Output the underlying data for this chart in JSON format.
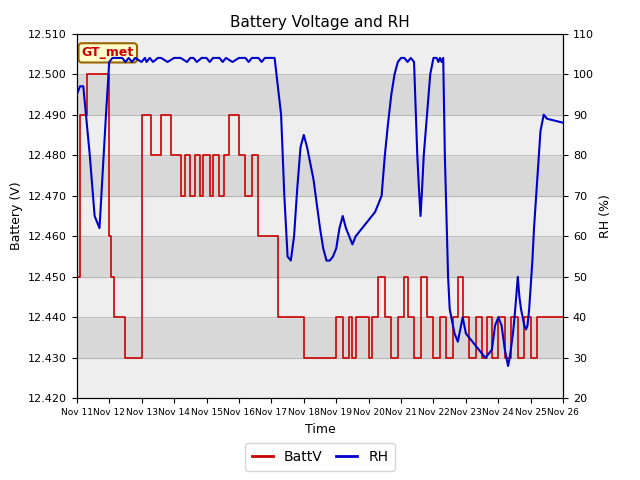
{
  "title": "Battery Voltage and RH",
  "xlabel": "Time",
  "ylabel_left": "Battery (V)",
  "ylabel_right": "RH (%)",
  "ylim_left": [
    12.42,
    12.51
  ],
  "ylim_right": [
    20,
    110
  ],
  "yticks_left": [
    12.42,
    12.43,
    12.44,
    12.45,
    12.46,
    12.47,
    12.48,
    12.49,
    12.5,
    12.51
  ],
  "yticks_right": [
    20,
    30,
    40,
    50,
    60,
    70,
    80,
    90,
    100,
    110
  ],
  "legend_label_batt": "BattV",
  "legend_label_rh": "RH",
  "batt_color": "#cc0000",
  "rh_color": "#0000cc",
  "annotation_text": "GT_met",
  "annotation_bg": "#ffffcc",
  "annotation_border": "#996600",
  "band_color_dark": "#d8d8d8",
  "band_color_light": "#eeeeee",
  "xtick_labels": [
    "Nov 11",
    "Nov 12",
    "Nov 13",
    "Nov 14",
    "Nov 15",
    "Nov 16",
    "Nov 17",
    "Nov 18",
    "Nov 19",
    "Nov 20",
    "Nov 21",
    "Nov 22",
    "Nov 23",
    "Nov 24",
    "Nov 25",
    "Nov 26"
  ],
  "batt_data": [
    [
      0.0,
      12.45
    ],
    [
      0.1,
      12.45
    ],
    [
      0.1,
      12.49
    ],
    [
      0.3,
      12.49
    ],
    [
      0.3,
      12.5
    ],
    [
      1.0,
      12.5
    ],
    [
      1.0,
      12.46
    ],
    [
      1.05,
      12.46
    ],
    [
      1.05,
      12.45
    ],
    [
      1.15,
      12.45
    ],
    [
      1.15,
      12.44
    ],
    [
      1.5,
      12.44
    ],
    [
      1.5,
      12.43
    ],
    [
      2.0,
      12.43
    ],
    [
      2.0,
      12.49
    ],
    [
      2.3,
      12.49
    ],
    [
      2.3,
      12.48
    ],
    [
      2.6,
      12.48
    ],
    [
      2.6,
      12.49
    ],
    [
      2.9,
      12.49
    ],
    [
      2.9,
      12.48
    ],
    [
      3.2,
      12.48
    ],
    [
      3.2,
      12.47
    ],
    [
      3.35,
      12.47
    ],
    [
      3.35,
      12.48
    ],
    [
      3.5,
      12.48
    ],
    [
      3.5,
      12.47
    ],
    [
      3.65,
      12.47
    ],
    [
      3.65,
      12.48
    ],
    [
      3.8,
      12.48
    ],
    [
      3.8,
      12.47
    ],
    [
      3.9,
      12.47
    ],
    [
      3.9,
      12.48
    ],
    [
      4.1,
      12.48
    ],
    [
      4.1,
      12.47
    ],
    [
      4.2,
      12.47
    ],
    [
      4.2,
      12.48
    ],
    [
      4.4,
      12.48
    ],
    [
      4.4,
      12.47
    ],
    [
      4.55,
      12.47
    ],
    [
      4.55,
      12.48
    ],
    [
      4.7,
      12.48
    ],
    [
      4.7,
      12.49
    ],
    [
      5.0,
      12.49
    ],
    [
      5.0,
      12.48
    ],
    [
      5.2,
      12.48
    ],
    [
      5.2,
      12.47
    ],
    [
      5.4,
      12.47
    ],
    [
      5.4,
      12.48
    ],
    [
      5.6,
      12.48
    ],
    [
      5.6,
      12.46
    ],
    [
      6.2,
      12.46
    ],
    [
      6.2,
      12.44
    ],
    [
      7.0,
      12.44
    ],
    [
      7.0,
      12.43
    ],
    [
      8.0,
      12.43
    ],
    [
      8.0,
      12.44
    ],
    [
      8.2,
      12.44
    ],
    [
      8.2,
      12.43
    ],
    [
      8.4,
      12.43
    ],
    [
      8.4,
      12.44
    ],
    [
      8.5,
      12.44
    ],
    [
      8.5,
      12.43
    ],
    [
      8.6,
      12.43
    ],
    [
      8.6,
      12.44
    ],
    [
      9.0,
      12.44
    ],
    [
      9.0,
      12.43
    ],
    [
      9.1,
      12.43
    ],
    [
      9.1,
      12.44
    ],
    [
      9.3,
      12.44
    ],
    [
      9.3,
      12.45
    ],
    [
      9.5,
      12.45
    ],
    [
      9.5,
      12.44
    ],
    [
      9.7,
      12.44
    ],
    [
      9.7,
      12.43
    ],
    [
      9.9,
      12.43
    ],
    [
      9.9,
      12.44
    ],
    [
      10.1,
      12.44
    ],
    [
      10.1,
      12.45
    ],
    [
      10.2,
      12.45
    ],
    [
      10.2,
      12.44
    ],
    [
      10.4,
      12.44
    ],
    [
      10.4,
      12.43
    ],
    [
      10.6,
      12.43
    ],
    [
      10.6,
      12.45
    ],
    [
      10.8,
      12.45
    ],
    [
      10.8,
      12.44
    ],
    [
      11.0,
      12.44
    ],
    [
      11.0,
      12.43
    ],
    [
      11.2,
      12.43
    ],
    [
      11.2,
      12.44
    ],
    [
      11.4,
      12.44
    ],
    [
      11.4,
      12.43
    ],
    [
      11.6,
      12.43
    ],
    [
      11.6,
      12.44
    ],
    [
      11.75,
      12.44
    ],
    [
      11.75,
      12.45
    ],
    [
      11.9,
      12.45
    ],
    [
      11.9,
      12.44
    ],
    [
      12.1,
      12.44
    ],
    [
      12.1,
      12.43
    ],
    [
      12.3,
      12.43
    ],
    [
      12.3,
      12.44
    ],
    [
      12.5,
      12.44
    ],
    [
      12.5,
      12.43
    ],
    [
      12.65,
      12.43
    ],
    [
      12.65,
      12.44
    ],
    [
      12.8,
      12.44
    ],
    [
      12.8,
      12.43
    ],
    [
      13.0,
      12.43
    ],
    [
      13.0,
      12.44
    ],
    [
      13.2,
      12.44
    ],
    [
      13.2,
      12.43
    ],
    [
      13.4,
      12.43
    ],
    [
      13.4,
      12.44
    ],
    [
      13.6,
      12.44
    ],
    [
      13.6,
      12.43
    ],
    [
      13.8,
      12.43
    ],
    [
      13.8,
      12.44
    ],
    [
      14.0,
      12.44
    ],
    [
      14.0,
      12.43
    ],
    [
      14.2,
      12.43
    ],
    [
      14.2,
      12.44
    ],
    [
      15.0,
      12.44
    ]
  ],
  "rh_data": [
    [
      0.0,
      95
    ],
    [
      0.1,
      97
    ],
    [
      0.2,
      97
    ],
    [
      0.4,
      80
    ],
    [
      0.55,
      65
    ],
    [
      0.7,
      62
    ],
    [
      0.9,
      90
    ],
    [
      1.0,
      103
    ],
    [
      1.1,
      104
    ],
    [
      1.4,
      104
    ],
    [
      1.5,
      103
    ],
    [
      1.6,
      104
    ],
    [
      1.7,
      103
    ],
    [
      1.8,
      104
    ],
    [
      2.0,
      103
    ],
    [
      2.1,
      104
    ],
    [
      2.15,
      103
    ],
    [
      2.25,
      104
    ],
    [
      2.35,
      103
    ],
    [
      2.5,
      104
    ],
    [
      2.6,
      104
    ],
    [
      2.8,
      103
    ],
    [
      3.0,
      104
    ],
    [
      3.2,
      104
    ],
    [
      3.4,
      103
    ],
    [
      3.5,
      104
    ],
    [
      3.6,
      104
    ],
    [
      3.7,
      103
    ],
    [
      3.85,
      104
    ],
    [
      4.0,
      104
    ],
    [
      4.1,
      103
    ],
    [
      4.2,
      104
    ],
    [
      4.4,
      104
    ],
    [
      4.5,
      103
    ],
    [
      4.6,
      104
    ],
    [
      4.8,
      103
    ],
    [
      5.0,
      104
    ],
    [
      5.2,
      104
    ],
    [
      5.3,
      103
    ],
    [
      5.4,
      104
    ],
    [
      5.6,
      104
    ],
    [
      5.7,
      103
    ],
    [
      5.8,
      104
    ],
    [
      5.9,
      104
    ],
    [
      6.0,
      104
    ],
    [
      6.1,
      104
    ],
    [
      6.3,
      90
    ],
    [
      6.4,
      70
    ],
    [
      6.5,
      55
    ],
    [
      6.6,
      54
    ],
    [
      6.7,
      60
    ],
    [
      6.8,
      72
    ],
    [
      6.9,
      82
    ],
    [
      7.0,
      85
    ],
    [
      7.1,
      82
    ],
    [
      7.2,
      78
    ],
    [
      7.3,
      74
    ],
    [
      7.4,
      68
    ],
    [
      7.5,
      62
    ],
    [
      7.6,
      57
    ],
    [
      7.7,
      54
    ],
    [
      7.8,
      54
    ],
    [
      7.9,
      55
    ],
    [
      8.0,
      57
    ],
    [
      8.1,
      62
    ],
    [
      8.2,
      65
    ],
    [
      8.3,
      62
    ],
    [
      8.4,
      60
    ],
    [
      8.5,
      58
    ],
    [
      8.6,
      60
    ],
    [
      8.8,
      62
    ],
    [
      9.0,
      64
    ],
    [
      9.2,
      66
    ],
    [
      9.4,
      70
    ],
    [
      9.5,
      80
    ],
    [
      9.6,
      88
    ],
    [
      9.7,
      95
    ],
    [
      9.8,
      100
    ],
    [
      9.9,
      103
    ],
    [
      10.0,
      104
    ],
    [
      10.1,
      104
    ],
    [
      10.2,
      103
    ],
    [
      10.3,
      104
    ],
    [
      10.4,
      103
    ],
    [
      10.5,
      80
    ],
    [
      10.55,
      72
    ],
    [
      10.6,
      65
    ],
    [
      10.65,
      72
    ],
    [
      10.7,
      80
    ],
    [
      10.8,
      90
    ],
    [
      10.9,
      100
    ],
    [
      11.0,
      104
    ],
    [
      11.1,
      104
    ],
    [
      11.15,
      103
    ],
    [
      11.2,
      104
    ],
    [
      11.25,
      103
    ],
    [
      11.3,
      104
    ],
    [
      11.35,
      80
    ],
    [
      11.4,
      65
    ],
    [
      11.45,
      50
    ],
    [
      11.5,
      42
    ],
    [
      11.55,
      40
    ],
    [
      11.6,
      38
    ],
    [
      11.65,
      36
    ],
    [
      11.7,
      35
    ],
    [
      11.75,
      34
    ],
    [
      11.8,
      36
    ],
    [
      11.85,
      38
    ],
    [
      11.9,
      40
    ],
    [
      11.95,
      38
    ],
    [
      12.0,
      36
    ],
    [
      12.1,
      35
    ],
    [
      12.2,
      34
    ],
    [
      12.3,
      33
    ],
    [
      12.4,
      32
    ],
    [
      12.5,
      31
    ],
    [
      12.6,
      30
    ],
    [
      12.7,
      31
    ],
    [
      12.8,
      32
    ],
    [
      12.85,
      35
    ],
    [
      12.9,
      38
    ],
    [
      13.0,
      40
    ],
    [
      13.1,
      38
    ],
    [
      13.15,
      35
    ],
    [
      13.2,
      32
    ],
    [
      13.25,
      30
    ],
    [
      13.3,
      28
    ],
    [
      13.35,
      30
    ],
    [
      13.4,
      33
    ],
    [
      13.45,
      36
    ],
    [
      13.5,
      40
    ],
    [
      13.55,
      45
    ],
    [
      13.6,
      50
    ],
    [
      13.65,
      45
    ],
    [
      13.7,
      42
    ],
    [
      13.75,
      40
    ],
    [
      13.8,
      38
    ],
    [
      13.85,
      37
    ],
    [
      13.9,
      38
    ],
    [
      13.95,
      42
    ],
    [
      14.0,
      48
    ],
    [
      14.05,
      54
    ],
    [
      14.1,
      62
    ],
    [
      14.15,
      68
    ],
    [
      14.2,
      74
    ],
    [
      14.25,
      80
    ],
    [
      14.3,
      86
    ],
    [
      14.35,
      88
    ],
    [
      14.4,
      90
    ],
    [
      14.5,
      89
    ],
    [
      15.0,
      88
    ]
  ]
}
